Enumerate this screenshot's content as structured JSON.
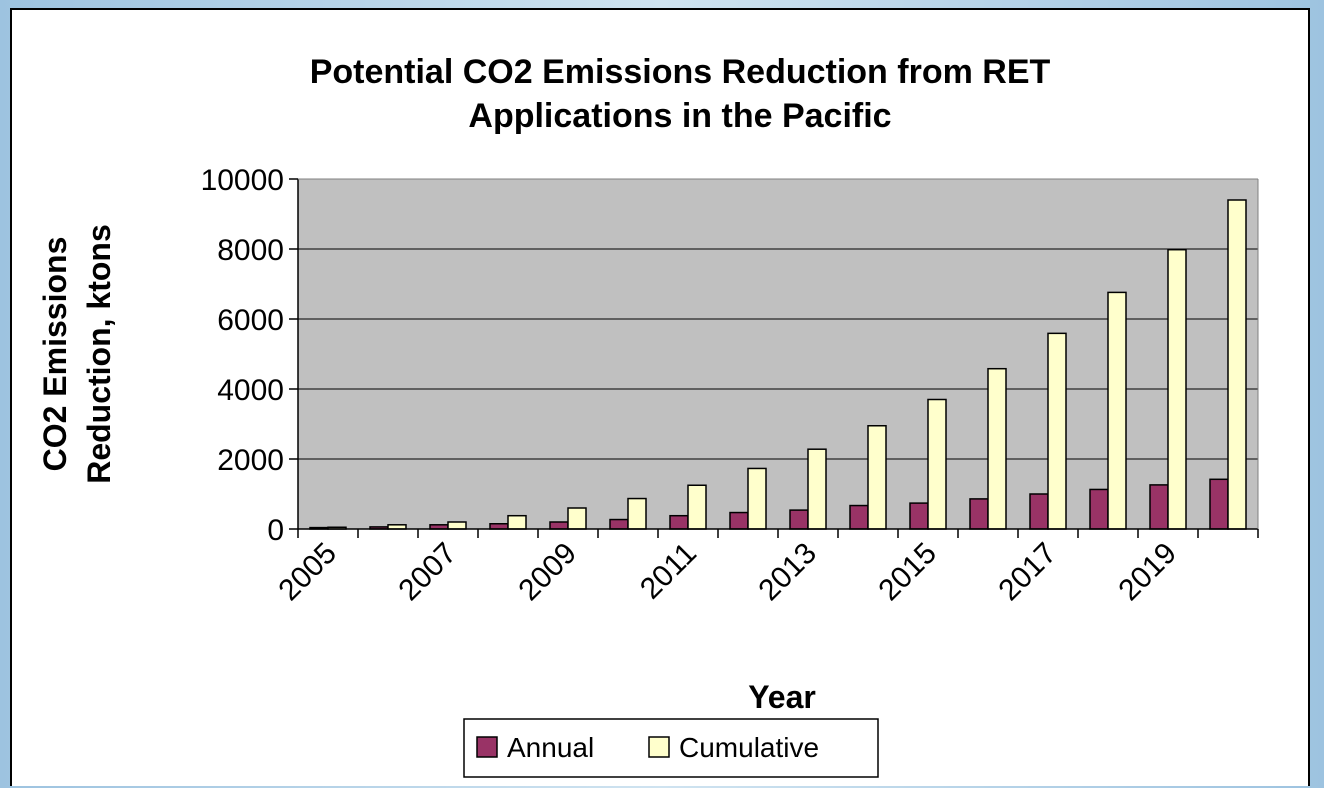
{
  "chart_data": {
    "type": "bar",
    "title": [
      "Potential CO2 Emissions Reduction from RET",
      "Applications in the Pacific"
    ],
    "xlabel": "Year",
    "ylabel": [
      "CO2 Emissions",
      "Reduction, ktons"
    ],
    "ylim": [
      0,
      10000
    ],
    "yticks": [
      "0",
      "2000",
      "4000",
      "6000",
      "8000",
      "10000"
    ],
    "categories": [
      2005,
      2006,
      2007,
      2008,
      2009,
      2010,
      2011,
      2012,
      2013,
      2014,
      2015,
      2016,
      2017,
      2018,
      2019,
      2020
    ],
    "xtick_labels": [
      "2005",
      "2007",
      "2009",
      "2011",
      "2013",
      "2015",
      "2017",
      "2019"
    ],
    "series": [
      {
        "name": "Annual",
        "color": "#993366",
        "values": [
          40,
          60,
          120,
          150,
          200,
          270,
          380,
          470,
          540,
          670,
          740,
          860,
          1000,
          1130,
          1260,
          1420
        ]
      },
      {
        "name": "Cumulative",
        "color": "#ffffcc",
        "values": [
          50,
          120,
          200,
          380,
          600,
          870,
          1250,
          1730,
          2280,
          2950,
          3700,
          4580,
          5590,
          6760,
          7980,
          9400
        ]
      }
    ],
    "grid": true,
    "plot_background": "#c0c0c0",
    "legend_position": "bottom"
  }
}
